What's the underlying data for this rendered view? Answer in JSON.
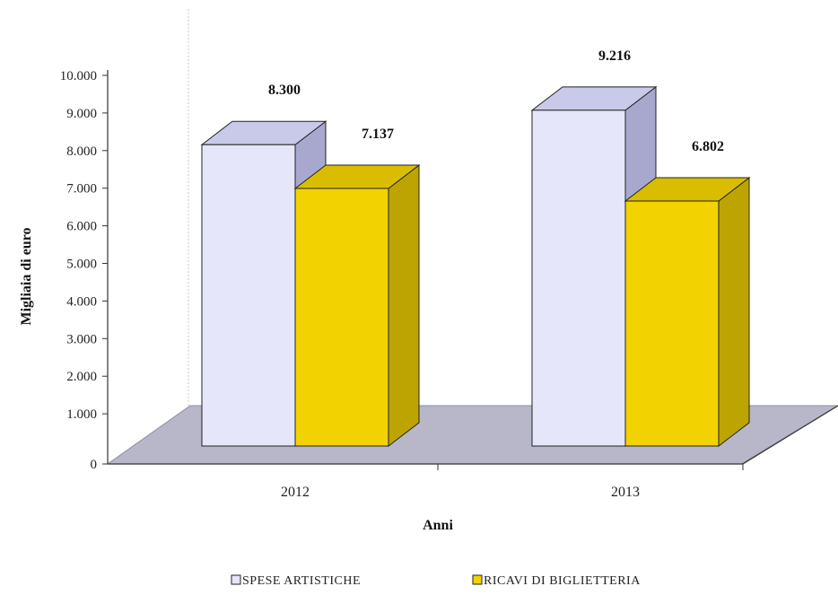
{
  "chart_data": {
    "type": "bar",
    "categories": [
      "2012",
      "2013"
    ],
    "series": [
      {
        "name": "SPESE ARTISTICHE",
        "values": [
          8300,
          9216
        ],
        "value_labels": [
          "8.300",
          "9.216"
        ],
        "color": "#e6e6fa"
      },
      {
        "name": "RICAVI DI BIGLIETTERIA",
        "values": [
          7137,
          6802
        ],
        "value_labels": [
          "7.137",
          "6.802"
        ],
        "color": "#f2d200"
      }
    ],
    "ylim": [
      0,
      10000
    ],
    "yticks": [
      0,
      1000,
      2000,
      3000,
      4000,
      5000,
      6000,
      7000,
      8000,
      9000,
      10000
    ],
    "ytick_labels": [
      "0",
      "1.000",
      "2.000",
      "3.000",
      "4.000",
      "5.000",
      "6.000",
      "7.000",
      "8.000",
      "9.000",
      "10.000"
    ],
    "title": "",
    "xlabel": "Anni",
    "ylabel": "Migliaia di euro",
    "legend_position": "bottom",
    "grid": false,
    "style": "3d-column"
  }
}
